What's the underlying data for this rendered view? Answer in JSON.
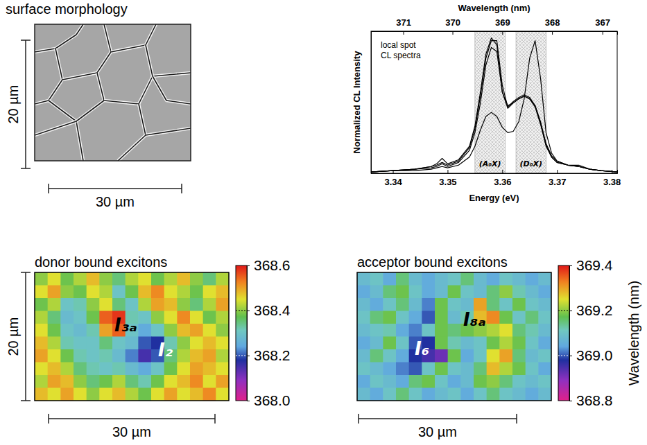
{
  "chart_data": [
    {
      "type": "image",
      "title": "surface morphology",
      "annotations": [
        "20 µm",
        "30 µm"
      ]
    },
    {
      "type": "line",
      "x2_label": "Wavelength (nm)",
      "x_label": "Energy (eV)",
      "y_label": "Normalized CL Intensity",
      "annotations": [
        "local spot CL spectra"
      ],
      "xlim": [
        3.336,
        3.381
      ],
      "xticks": [
        3.34,
        3.35,
        3.36,
        3.37,
        3.38
      ],
      "x2ticks": [
        {
          "value": 3.3419,
          "label": "371"
        },
        {
          "value": 3.3509,
          "label": "370"
        },
        {
          "value": 3.36,
          "label": "369"
        },
        {
          "value": 3.3691,
          "label": "368"
        },
        {
          "value": 3.3783,
          "label": "367"
        }
      ],
      "ylim": [
        0,
        1.05
      ],
      "yticks": [],
      "tick_labels": "x",
      "bands": [
        {
          "label": "(A₀X)",
          "range": [
            3.355,
            3.3605
          ]
        },
        {
          "label": "(D₀X)",
          "range": [
            3.3625,
            3.368
          ]
        }
      ],
      "x": [
        3.336,
        3.34,
        3.344,
        3.347,
        3.348,
        3.349,
        3.35,
        3.352,
        3.354,
        3.355,
        3.356,
        3.357,
        3.358,
        3.359,
        3.36,
        3.361,
        3.362,
        3.363,
        3.364,
        3.365,
        3.366,
        3.367,
        3.368,
        3.369,
        3.37,
        3.372,
        3.374,
        3.376,
        3.378,
        3.381
      ],
      "series": [
        {
          "color": "#000000",
          "values": [
            0.01,
            0.02,
            0.03,
            0.05,
            0.07,
            0.11,
            0.07,
            0.1,
            0.2,
            0.35,
            0.6,
            0.88,
            1.0,
            0.95,
            0.6,
            0.5,
            0.52,
            0.55,
            0.57,
            0.55,
            0.5,
            0.38,
            0.22,
            0.13,
            0.09,
            0.06,
            0.05,
            0.03,
            0.02,
            0.01
          ]
        },
        {
          "color": "#000000",
          "values": [
            0.01,
            0.02,
            0.03,
            0.05,
            0.06,
            0.08,
            0.06,
            0.09,
            0.19,
            0.33,
            0.57,
            0.85,
            0.98,
            0.98,
            0.65,
            0.49,
            0.53,
            0.56,
            0.58,
            0.56,
            0.5,
            0.37,
            0.21,
            0.12,
            0.08,
            0.06,
            0.05,
            0.03,
            0.02,
            0.01
          ]
        },
        {
          "color": "#000000",
          "values": [
            0.01,
            0.02,
            0.03,
            0.04,
            0.05,
            0.07,
            0.05,
            0.08,
            0.17,
            0.3,
            0.52,
            0.8,
            0.93,
            0.9,
            0.6,
            0.48,
            0.52,
            0.55,
            0.57,
            0.55,
            0.49,
            0.36,
            0.2,
            0.12,
            0.08,
            0.06,
            0.06,
            0.03,
            0.02,
            0.01
          ]
        },
        {
          "color": "#000000",
          "values": [
            0.01,
            0.02,
            0.02,
            0.03,
            0.04,
            0.05,
            0.04,
            0.06,
            0.12,
            0.2,
            0.32,
            0.42,
            0.45,
            0.42,
            0.34,
            0.3,
            0.31,
            0.38,
            0.55,
            0.85,
            0.98,
            0.7,
            0.3,
            0.15,
            0.09,
            0.06,
            0.05,
            0.03,
            0.02,
            0.01
          ]
        }
      ]
    },
    {
      "type": "heatmap",
      "title": "donor bound excitons",
      "annotations": [
        "20 µm",
        "30 µm",
        "I₃ₐ",
        "I₂"
      ],
      "colorbar": {
        "lim": [
          368.0,
          368.6
        ],
        "ticks": [
          {
            "value": 368.0,
            "label": "368.0"
          },
          {
            "value": 368.2,
            "label": "368.2"
          },
          {
            "value": 368.4,
            "label": "368.4"
          },
          {
            "value": 368.6,
            "label": "368.6"
          }
        ]
      },
      "cells": [
        [
          368.4,
          368.45,
          368.38,
          368.42,
          368.48,
          368.4,
          368.35,
          368.42,
          368.45,
          368.38,
          368.42,
          368.48,
          368.4,
          368.35,
          368.42
        ],
        [
          368.45,
          368.5,
          368.4,
          368.38,
          368.45,
          368.42,
          368.3,
          368.38,
          368.48,
          368.52,
          368.45,
          368.42,
          368.38,
          368.45,
          368.48
        ],
        [
          368.38,
          368.42,
          368.3,
          368.32,
          368.4,
          368.45,
          368.35,
          368.3,
          368.42,
          368.5,
          368.48,
          368.4,
          368.35,
          368.42,
          368.5
        ],
        [
          368.42,
          368.35,
          368.28,
          368.3,
          368.38,
          368.55,
          368.58,
          368.32,
          368.3,
          368.4,
          368.45,
          368.52,
          368.45,
          368.38,
          368.42
        ],
        [
          368.45,
          368.38,
          368.3,
          368.28,
          368.32,
          368.5,
          368.55,
          368.3,
          368.25,
          368.3,
          368.4,
          368.48,
          368.5,
          368.45,
          368.4
        ],
        [
          368.48,
          368.42,
          368.32,
          368.3,
          368.3,
          368.35,
          368.3,
          368.28,
          368.2,
          368.18,
          368.32,
          368.4,
          368.45,
          368.48,
          368.45
        ],
        [
          368.5,
          368.45,
          368.38,
          368.32,
          368.3,
          368.32,
          368.28,
          368.22,
          368.15,
          368.2,
          368.35,
          368.42,
          368.48,
          368.5,
          368.42
        ],
        [
          368.45,
          368.48,
          368.42,
          368.35,
          368.32,
          368.3,
          368.32,
          368.28,
          368.25,
          368.3,
          368.38,
          368.45,
          368.5,
          368.48,
          368.45
        ],
        [
          368.42,
          368.5,
          368.48,
          368.4,
          368.35,
          368.38,
          368.42,
          368.35,
          368.32,
          368.38,
          368.45,
          368.48,
          368.52,
          368.45,
          368.5
        ],
        [
          368.48,
          368.45,
          368.5,
          368.45,
          368.4,
          368.45,
          368.48,
          368.42,
          368.38,
          368.45,
          368.5,
          368.45,
          368.48,
          368.52,
          368.45
        ]
      ]
    },
    {
      "type": "heatmap",
      "title": "acceptor bound excitons",
      "annotations": [
        "30 µm",
        "I₆",
        "I₈ₐ"
      ],
      "colorbar": {
        "lim": [
          368.8,
          369.4
        ],
        "ticks": [
          {
            "value": 368.8,
            "label": "368.8"
          },
          {
            "value": 369.0,
            "label": "369.0"
          },
          {
            "value": 369.2,
            "label": "369.2"
          },
          {
            "value": 369.4,
            "label": "369.4"
          }
        ],
        "title": "Wavelength (nm)"
      },
      "cells": [
        [
          369.08,
          369.1,
          369.05,
          369.15,
          369.08,
          369.05,
          369.08,
          369.1,
          369.15,
          369.08,
          369.05,
          369.1,
          369.08,
          369.05,
          369.08
        ],
        [
          369.05,
          369.08,
          369.15,
          369.18,
          369.1,
          369.05,
          369.08,
          369.18,
          369.1,
          369.08,
          369.15,
          369.2,
          369.12,
          369.08,
          369.05
        ],
        [
          369.08,
          369.05,
          369.1,
          369.15,
          369.08,
          369.02,
          369.18,
          369.1,
          369.08,
          369.3,
          369.15,
          369.1,
          369.18,
          369.1,
          369.08
        ],
        [
          369.1,
          369.15,
          369.18,
          369.1,
          369.05,
          369.0,
          369.18,
          369.08,
          369.12,
          369.28,
          369.32,
          369.18,
          369.1,
          369.15,
          369.1
        ],
        [
          369.08,
          369.1,
          369.12,
          369.05,
          369.02,
          369.1,
          369.18,
          369.15,
          369.18,
          369.2,
          369.22,
          369.25,
          369.15,
          369.12,
          369.08
        ],
        [
          369.05,
          369.08,
          369.18,
          369.1,
          369.0,
          368.98,
          369.18,
          369.12,
          369.08,
          369.1,
          369.18,
          369.22,
          369.18,
          369.1,
          369.05
        ],
        [
          369.08,
          369.15,
          369.1,
          369.05,
          368.98,
          368.95,
          368.92,
          369.18,
          369.05,
          369.1,
          369.25,
          369.3,
          369.15,
          369.08,
          369.1
        ],
        [
          369.1,
          369.08,
          369.05,
          369.02,
          369.0,
          369.1,
          369.18,
          369.1,
          369.08,
          369.15,
          369.28,
          369.22,
          369.18,
          369.1,
          369.05
        ],
        [
          369.05,
          369.1,
          369.08,
          369.05,
          369.15,
          369.18,
          369.1,
          369.05,
          369.08,
          369.18,
          369.2,
          369.15,
          369.1,
          369.08,
          369.1
        ],
        [
          369.08,
          369.05,
          369.1,
          369.15,
          369.1,
          369.05,
          369.08,
          369.1,
          369.05,
          369.1,
          369.15,
          369.1,
          369.08,
          369.05,
          369.08
        ]
      ]
    }
  ]
}
